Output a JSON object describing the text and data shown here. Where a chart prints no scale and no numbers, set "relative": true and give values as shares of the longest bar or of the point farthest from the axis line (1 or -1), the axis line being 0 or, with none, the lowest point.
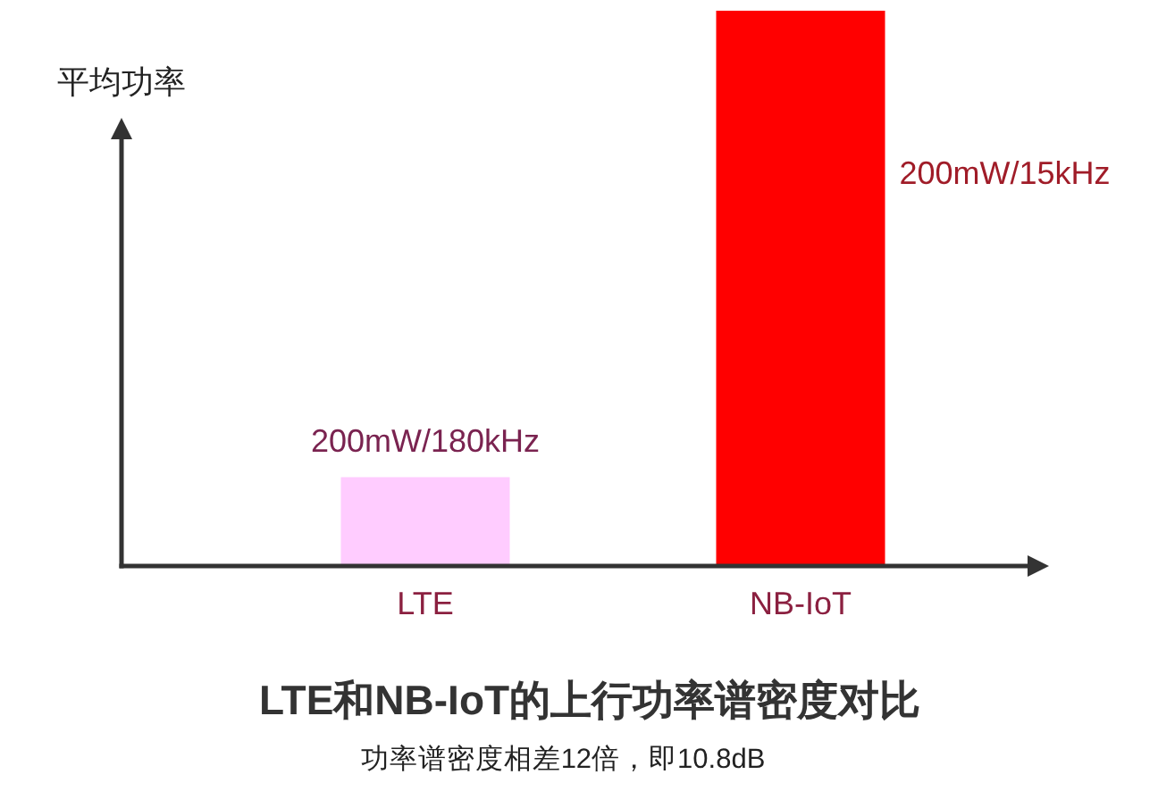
{
  "chart_data": {
    "type": "bar",
    "title": "LTE和NB-IoT的上行功率谱密度对比",
    "ylabel": "平均功率",
    "annotations": [
      {
        "text": "200mW/180kHz",
        "x": "LTE",
        "y": 0.16
      },
      "200mW/15kHz",
      "功率谱密度相差12倍，即10.8dB"
    ],
    "categories": [
      "LTE",
      "NB-IoT"
    ],
    "relative": true,
    "values": [
      0.16,
      1
    ],
    "colors": [
      "#ffccff",
      "#ff0000"
    ]
  }
}
